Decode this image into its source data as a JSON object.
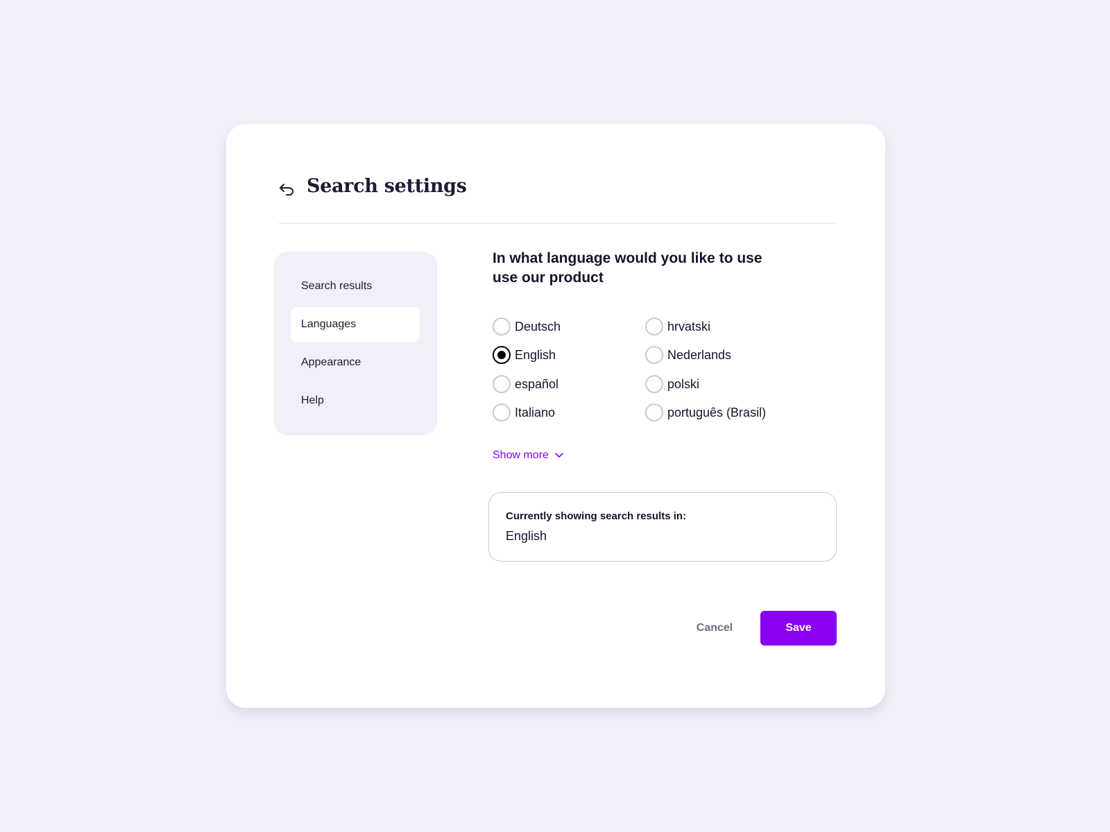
{
  "header": {
    "title": "Search settings",
    "back_icon": "undo-arrow-icon"
  },
  "sidebar": {
    "items": [
      {
        "label": "Search results",
        "active": false
      },
      {
        "label": "Languages",
        "active": true
      },
      {
        "label": "Appearance",
        "active": false
      },
      {
        "label": "Help",
        "active": false
      }
    ]
  },
  "main": {
    "heading": "In what language would you like to use use our product",
    "languages": [
      {
        "label": "Deutsch",
        "selected": false
      },
      {
        "label": "English",
        "selected": true
      },
      {
        "label": "español",
        "selected": false
      },
      {
        "label": "Italiano",
        "selected": false
      },
      {
        "label": "hrvatski",
        "selected": false
      },
      {
        "label": "Nederlands",
        "selected": false
      },
      {
        "label": "polski",
        "selected": false
      },
      {
        "label": "português (Brasil)",
        "selected": false
      }
    ],
    "show_more": "Show more",
    "info": {
      "label": "Currently showing search results in:",
      "value": "English"
    }
  },
  "footer": {
    "cancel": "Cancel",
    "save": "Save"
  },
  "colors": {
    "accent": "#8a00f0",
    "background": "#f0f0f9"
  }
}
